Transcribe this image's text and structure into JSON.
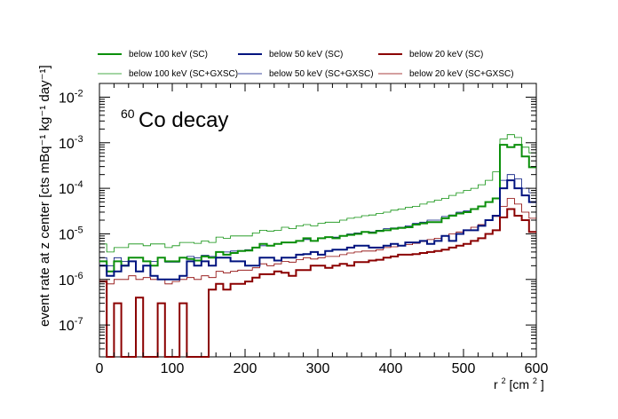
{
  "chart_data": {
    "type": "line",
    "title_mass": "60",
    "title_text": "Co decay",
    "xlabel_base": "r",
    "xlabel_exp": "2",
    "xlabel_unit": " [cm",
    "xlabel_unit_exp": "2",
    "xlabel_close": "]",
    "ylabel": "event rate at z center [cts mBq⁻¹ kg⁻¹ day⁻¹]",
    "xlim": [
      0,
      600
    ],
    "ylim": [
      2e-08,
      0.02
    ],
    "log_y": true,
    "x_ticks": [
      "0",
      "100",
      "200",
      "300",
      "400",
      "500",
      "600"
    ],
    "y_ticks": [
      {
        "base": "10",
        "exp": "-7"
      },
      {
        "base": "10",
        "exp": "-6"
      },
      {
        "base": "10",
        "exp": "-5"
      },
      {
        "base": "10",
        "exp": "-4"
      },
      {
        "base": "10",
        "exp": "-3"
      },
      {
        "base": "10",
        "exp": "-2"
      }
    ],
    "bin_width": 10,
    "legend_placement": "top, above plot (3 columns)",
    "series": [
      {
        "name": "below 100 keV (SC)",
        "color": "#0b8f0b",
        "style": "thick",
        "values": [
          2.5e-06,
          1.5e-06,
          2.5e-06,
          2e-06,
          3e-06,
          3e-06,
          2.5e-06,
          2e-06,
          3e-06,
          2.5e-06,
          2.5e-06,
          3e-06,
          2.8e-06,
          2.6e-06,
          3.2e-06,
          3e-06,
          4e-06,
          3.5e-06,
          3.8e-06,
          4.2e-06,
          4.3e-06,
          5e-06,
          6e-06,
          5.5e-06,
          6e-06,
          6.5e-06,
          6.5e-06,
          7e-06,
          8e-06,
          7e-06,
          8e-06,
          8.5e-06,
          8e-06,
          9e-06,
          9.5e-06,
          1e-05,
          1.1e-05,
          1.05e-05,
          1.15e-05,
          1.2e-05,
          1.3e-05,
          1.35e-05,
          1.4e-05,
          1.6e-05,
          1.7e-05,
          1.8e-05,
          1.8e-05,
          2.2e-05,
          2.5e-05,
          2.8e-05,
          3e-05,
          3.5e-05,
          4e-05,
          5e-05,
          6e-05,
          0.0009,
          0.0008,
          0.0009,
          0.0005,
          0.00029
        ]
      },
      {
        "name": "below 50 keV (SC)",
        "color": "#00137f",
        "style": "thick",
        "values": [
          2e-06,
          1.2e-06,
          1.5e-06,
          2e-06,
          2.5e-06,
          1.5e-06,
          2e-06,
          1.2e-06,
          1e-06,
          1e-06,
          1e-06,
          1.2e-06,
          2.5e-06,
          2e-06,
          2.5e-06,
          2e-06,
          3e-06,
          3e-06,
          2.5e-06,
          2.5e-06,
          2e-06,
          2e-06,
          3e-06,
          3e-06,
          2.6e-06,
          3e-06,
          3e-06,
          3.5e-06,
          3.6e-06,
          4e-06,
          3.5e-06,
          4.2e-06,
          4.5e-06,
          4.5e-06,
          5e-06,
          5.5e-06,
          5.5e-06,
          5e-06,
          5e-06,
          5.5e-06,
          6e-06,
          5.5e-06,
          6.5e-06,
          6.5e-06,
          7e-06,
          6e-06,
          7e-06,
          9e-06,
          7e-06,
          1e-05,
          1.2e-05,
          1.2e-05,
          1.5e-05,
          2e-05,
          2.5e-05,
          0.0001,
          0.00015,
          0.0001,
          7e-05,
          5e-05
        ]
      },
      {
        "name": "below 20 keV (SC)",
        "color": "#8b0000",
        "style": "thick",
        "values": [
          9e-07,
          2e-08,
          3e-07,
          2e-08,
          2e-08,
          4e-07,
          2e-08,
          2e-08,
          3e-07,
          2e-08,
          2e-08,
          3e-07,
          2e-08,
          2e-08,
          2e-08,
          6e-07,
          8e-07,
          6e-07,
          8e-07,
          8e-07,
          9e-07,
          1.1e-06,
          1.3e-06,
          1.3e-06,
          1.5e-06,
          1.4e-06,
          1.2e-06,
          1.6e-06,
          1.6e-06,
          2e-06,
          2e-06,
          1.8e-06,
          2e-06,
          2.2e-06,
          2e-06,
          2.4e-06,
          2.4e-06,
          2.6e-06,
          2.7e-06,
          3e-06,
          3.2e-06,
          3.5e-06,
          3.5e-06,
          3.6e-06,
          3.8e-06,
          4e-06,
          4.2e-06,
          4.5e-06,
          5e-06,
          5.5e-06,
          6e-06,
          7e-06,
          8e-06,
          1e-05,
          1.2e-05,
          2.3e-05,
          3.5e-05,
          2.5e-05,
          2e-05,
          1.1e-05
        ]
      },
      {
        "name": "below 100 keV (SC+GXSC)",
        "color": "#0b8f0b",
        "style": "thin",
        "values": [
          6e-06,
          4e-06,
          5e-06,
          5e-06,
          6e-06,
          6e-06,
          5.5e-06,
          6e-06,
          6e-06,
          5e-06,
          5.5e-06,
          6.5e-06,
          6.5e-06,
          6.2e-06,
          7e-06,
          6.5e-06,
          8.5e-06,
          8e-06,
          9e-06,
          9e-06,
          9e-06,
          1.05e-05,
          1.2e-05,
          1.15e-05,
          1.2e-05,
          1.4e-05,
          1.3e-05,
          1.5e-05,
          1.6e-05,
          1.5e-05,
          1.7e-05,
          1.8e-05,
          1.8e-05,
          2e-05,
          2.2e-05,
          2.3e-05,
          2.5e-05,
          2.6e-05,
          2.8e-05,
          3e-05,
          3.3e-05,
          3.5e-05,
          3.8e-05,
          4e-05,
          4.5e-05,
          5e-05,
          5.5e-05,
          6e-05,
          7e-05,
          8e-05,
          9e-05,
          0.0001,
          0.00012,
          0.00015,
          0.00023,
          0.0012,
          0.0015,
          0.0013,
          0.0008,
          0.0006
        ]
      },
      {
        "name": "below 50 keV (SC+GXSC)",
        "color": "#00137f",
        "style": "thin",
        "values": [
          3e-06,
          2e-06,
          3e-06,
          2.5e-06,
          3e-06,
          3e-06,
          2.5e-06,
          2.5e-06,
          3e-06,
          2.4e-06,
          2.4e-06,
          3e-06,
          3.2e-06,
          3e-06,
          3.4e-06,
          3.2e-06,
          4e-06,
          4e-06,
          4.2e-06,
          4.3e-06,
          4.5e-06,
          5e-06,
          5.5e-06,
          5.5e-06,
          6e-06,
          6.5e-06,
          6.5e-06,
          7e-06,
          7.5e-06,
          7e-06,
          8e-06,
          8.5e-06,
          8.5e-06,
          9e-06,
          1e-05,
          1.05e-05,
          1.1e-05,
          1.1e-05,
          1.2e-05,
          1.3e-05,
          1.35e-05,
          1.4e-05,
          1.5e-05,
          1.7e-05,
          1.8e-05,
          2e-05,
          2e-05,
          2.4e-05,
          2.6e-05,
          3e-05,
          3.2e-05,
          3.6e-05,
          4e-05,
          5e-05,
          6e-05,
          0.00015,
          0.0002,
          0.00016,
          0.0001,
          8e-05
        ]
      },
      {
        "name": "below 20 keV (SC+GXSC)",
        "color": "#8b0000",
        "style": "thin",
        "values": [
          1e-06,
          8e-07,
          1e-06,
          1e-06,
          1.2e-06,
          1e-06,
          1.1e-06,
          1e-06,
          1e-06,
          8e-07,
          9e-07,
          1e-06,
          1.1e-06,
          1e-06,
          1.2e-06,
          1.1e-06,
          1.5e-06,
          1.4e-06,
          1.5e-06,
          1.6e-06,
          1.6e-06,
          1.8e-06,
          2.2e-06,
          2e-06,
          2.2e-06,
          2.5e-06,
          2.4e-06,
          2.7e-06,
          3e-06,
          2.8e-06,
          3e-06,
          3.2e-06,
          3.2e-06,
          3.5e-06,
          3.8e-06,
          4e-06,
          4.2e-06,
          4.2e-06,
          4.5e-06,
          5e-06,
          5.2e-06,
          5.5e-06,
          5.8e-06,
          6.2e-06,
          6.8e-06,
          7.5e-06,
          8e-06,
          9e-06,
          1e-05,
          1.1e-05,
          1.2e-05,
          1.4e-05,
          1.6e-05,
          2e-05,
          2.4e-05,
          4e-05,
          6e-05,
          4.5e-05,
          3e-05,
          2.2e-05
        ]
      }
    ]
  }
}
